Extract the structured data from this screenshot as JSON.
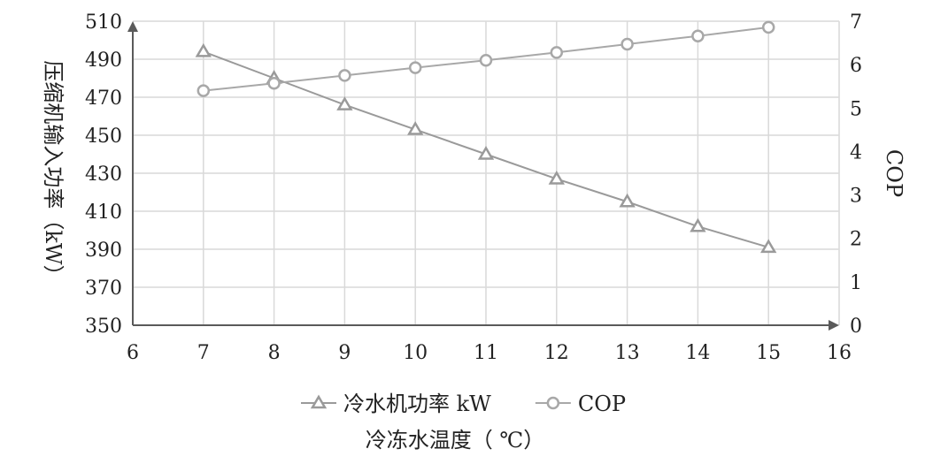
{
  "chart_data": {
    "type": "line",
    "x": [
      7,
      8,
      9,
      10,
      11,
      12,
      13,
      14,
      15
    ],
    "xlim": [
      6,
      16
    ],
    "xticks": [
      "6",
      "7",
      "8",
      "9",
      "10",
      "11",
      "12",
      "13",
      "14",
      "15",
      "16"
    ],
    "xlabel": "冷冻水温度（ ℃）",
    "ylabel_left": "压缩机输入功率（kW）",
    "ylim_left": [
      350,
      510
    ],
    "yticks_left": [
      "350",
      "370",
      "390",
      "410",
      "430",
      "450",
      "470",
      "490",
      "510"
    ],
    "ylabel_right": "COP",
    "ylim_right": [
      0,
      7
    ],
    "yticks_right": [
      "0",
      "1",
      "2",
      "3",
      "4",
      "5",
      "6",
      "7"
    ],
    "grid": true,
    "legend_position": "bottom",
    "series": [
      {
        "name": "冷水机功率 kW",
        "axis": "left",
        "marker": "triangle",
        "color": "#9a9a9a",
        "values": [
          494,
          480,
          466,
          453,
          440,
          427,
          415,
          402,
          391
        ]
      },
      {
        "name": "COP",
        "axis": "right",
        "marker": "circle",
        "color": "#a8a8a8",
        "values": [
          5.4,
          5.57,
          5.75,
          5.93,
          6.1,
          6.28,
          6.47,
          6.66,
          6.86
        ]
      }
    ]
  }
}
